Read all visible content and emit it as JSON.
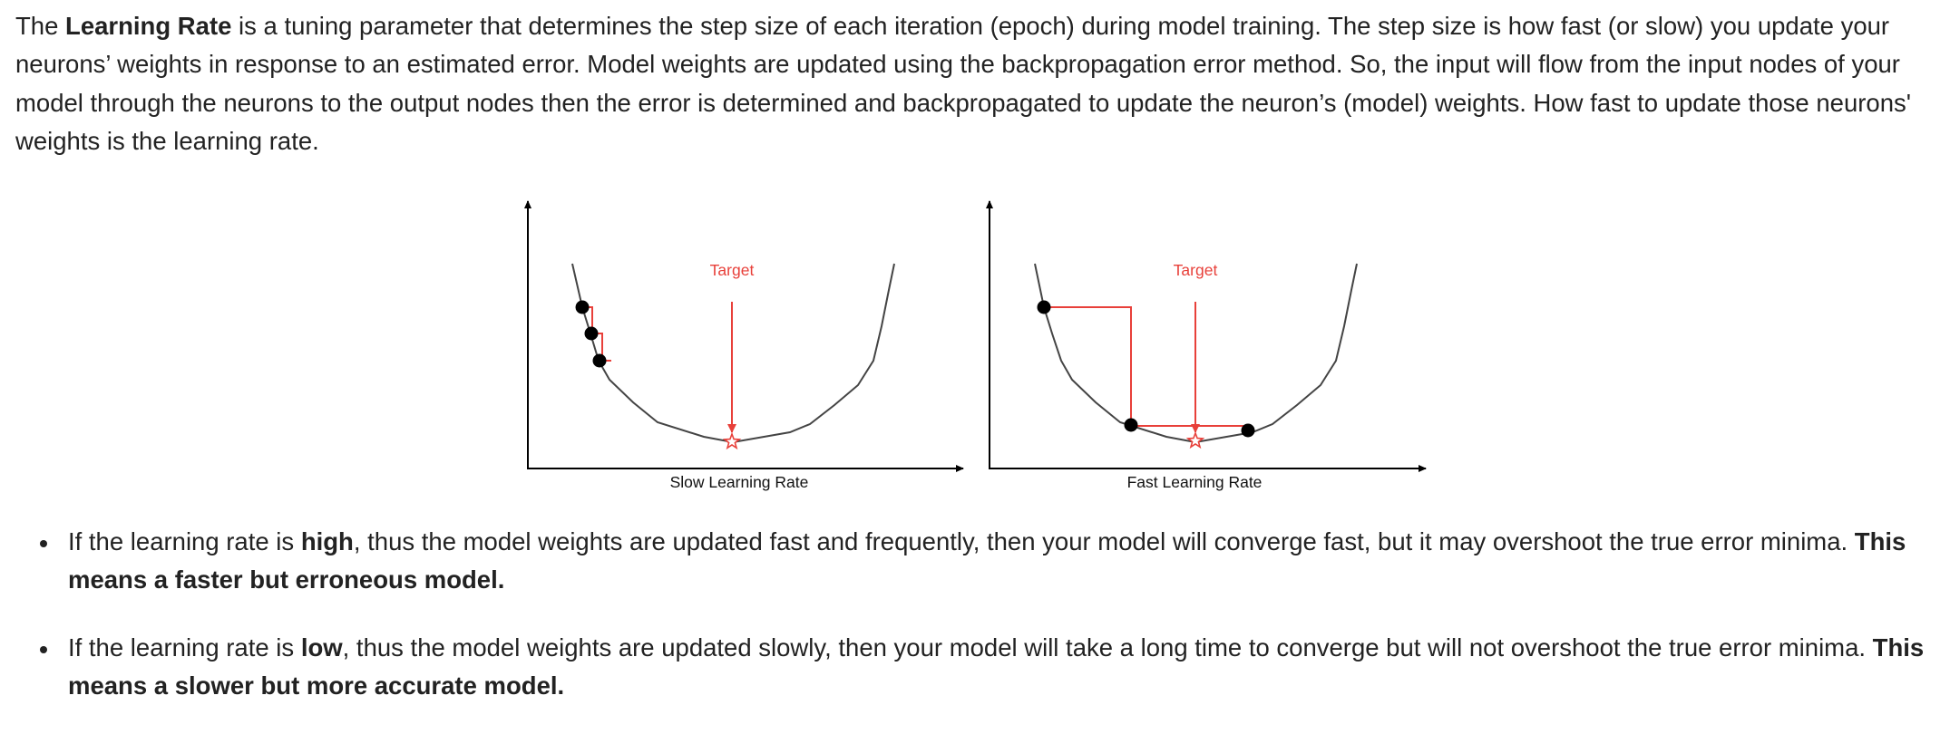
{
  "intro": {
    "t1": "The ",
    "b1": "Learning Rate",
    "t2": " is a tuning parameter that determines the step size of each iteration (epoch) during model training. The step size is how fast (or slow) you update your neurons’ weights in response to an estimated error. Model weights are updated using the backpropagation error method. So, the input will flow from the input nodes of your model through the neurons to the output nodes then the error is determined and backpropagated to update the neuron’s (model) weights. How fast to update those neurons' weights is the learning rate."
  },
  "figure": {
    "left": {
      "xlabel": "Slow Learning Rate",
      "target_label": "Target"
    },
    "right": {
      "xlabel": "Fast Learning Rate",
      "target_label": "Target"
    },
    "colors": {
      "annotation": "#e8403a",
      "curve": "#444444",
      "dot": "#000000"
    }
  },
  "bullets": [
    {
      "t1": "If the learning rate is ",
      "b1": "high",
      "t2": ", thus the model weights are updated fast and frequently, then your model will converge fast, but it may overshoot the true error minima. ",
      "b2": "This means a faster but erroneous model."
    },
    {
      "t1": "If the learning rate is ",
      "b1": "low",
      "t2": ", thus the model weights are updated slowly, then your model will take a long time to converge but will not overshoot the true error minima. ",
      "b2": "This means a slower but more accurate model."
    }
  ]
}
